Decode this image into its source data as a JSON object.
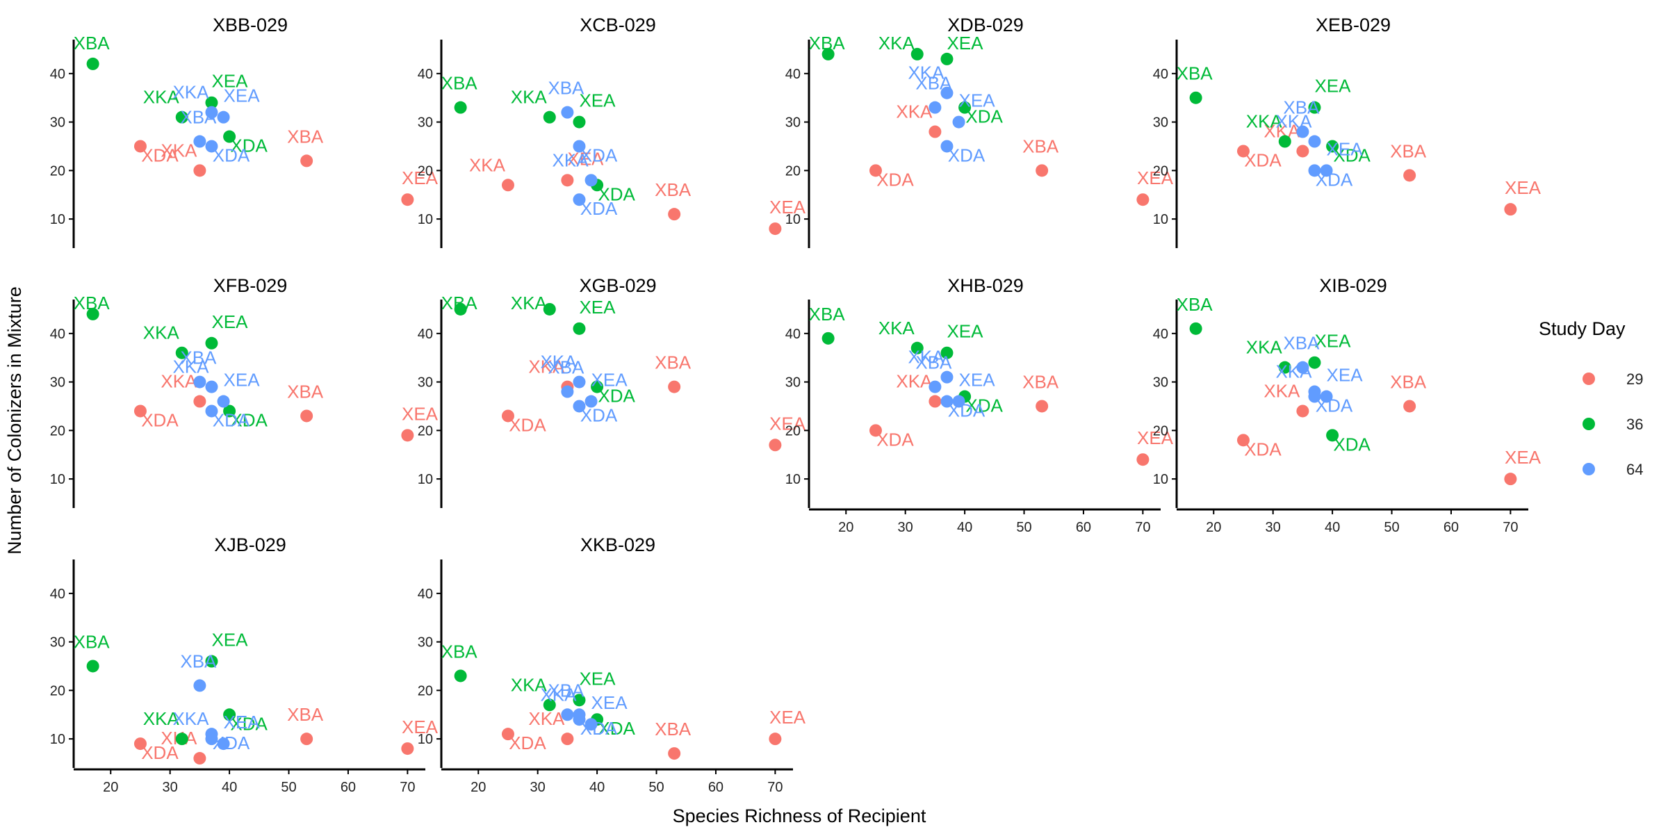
{
  "colors": {
    "29": "#F8766D",
    "36": "#00BA38",
    "64": "#619CFF"
  },
  "chart_data": {
    "type": "scatter",
    "xlabel": "Species Richness of Recipient",
    "ylabel": "Number of Colonizers in Mixture",
    "xlim": [
      14,
      73
    ],
    "ylim": [
      4,
      47
    ],
    "xticks": [
      20,
      30,
      40,
      50,
      60,
      70
    ],
    "yticks": [
      10,
      20,
      30,
      40
    ],
    "xtick_labels": [
      "20",
      "30",
      "40",
      "50",
      "60",
      "70"
    ],
    "ytick_labels": [
      "10",
      "20",
      "30",
      "40"
    ],
    "grid": false,
    "legend": {
      "title": "Study Day",
      "placement": "right",
      "entries": [
        "29",
        "36",
        "64"
      ]
    },
    "panels": [
      {
        "title": "XBB-029",
        "points": [
          {
            "day": "29",
            "label": "XDA",
            "x": 25,
            "y": 25
          },
          {
            "day": "29",
            "label": "XKA",
            "x": 35,
            "y": 20
          },
          {
            "day": "29",
            "label": "XBA",
            "x": 53,
            "y": 22
          },
          {
            "day": "29",
            "label": "XEA",
            "x": 70,
            "y": 14
          },
          {
            "day": "36",
            "label": "XBA",
            "x": 17,
            "y": 42
          },
          {
            "day": "36",
            "label": "XKA",
            "x": 32,
            "y": 31
          },
          {
            "day": "36",
            "label": "XEA",
            "x": 37,
            "y": 34
          },
          {
            "day": "36",
            "label": "XDA",
            "x": 40,
            "y": 27
          },
          {
            "day": "64",
            "label": "XKA",
            "x": 37,
            "y": 32
          },
          {
            "day": "64",
            "label": "XEA",
            "x": 39,
            "y": 31
          },
          {
            "day": "64",
            "label": "XBA",
            "x": 35,
            "y": 26
          },
          {
            "day": "64",
            "label": "XDA",
            "x": 37,
            "y": 25
          }
        ]
      },
      {
        "title": "XCB-029",
        "points": [
          {
            "day": "29",
            "label": "XKA",
            "x": 25,
            "y": 17
          },
          {
            "day": "29",
            "label": "XEA",
            "x": 35,
            "y": 18
          },
          {
            "day": "29",
            "label": "XBA",
            "x": 53,
            "y": 11
          },
          {
            "day": "29",
            "label": "XEA",
            "x": 70,
            "y": 8
          },
          {
            "day": "36",
            "label": "XBA",
            "x": 17,
            "y": 33
          },
          {
            "day": "36",
            "label": "XKA",
            "x": 32,
            "y": 31
          },
          {
            "day": "36",
            "label": "XEA",
            "x": 37,
            "y": 30
          },
          {
            "day": "36",
            "label": "XDA",
            "x": 40,
            "y": 17
          },
          {
            "day": "64",
            "label": "XBA",
            "x": 35,
            "y": 32
          },
          {
            "day": "64",
            "label": "XDA",
            "x": 37,
            "y": 25
          },
          {
            "day": "64",
            "label": "XKA",
            "x": 39,
            "y": 18
          },
          {
            "day": "64",
            "label": "XDA",
            "x": 37,
            "y": 14
          }
        ]
      },
      {
        "title": "XDB-029",
        "points": [
          {
            "day": "29",
            "label": "XDA",
            "x": 25,
            "y": 20
          },
          {
            "day": "29",
            "label": "XKA",
            "x": 35,
            "y": 28
          },
          {
            "day": "29",
            "label": "XBA",
            "x": 53,
            "y": 20
          },
          {
            "day": "29",
            "label": "XEA",
            "x": 70,
            "y": 14
          },
          {
            "day": "36",
            "label": "XBA",
            "x": 17,
            "y": 44
          },
          {
            "day": "36",
            "label": "XKA",
            "x": 32,
            "y": 44
          },
          {
            "day": "36",
            "label": "XEA",
            "x": 37,
            "y": 43
          },
          {
            "day": "36",
            "label": "XDA",
            "x": 40,
            "y": 33
          },
          {
            "day": "64",
            "label": "XKA",
            "x": 37,
            "y": 36
          },
          {
            "day": "64",
            "label": "XBA",
            "x": 35,
            "y": 33
          },
          {
            "day": "64",
            "label": "XEA",
            "x": 39,
            "y": 30
          },
          {
            "day": "64",
            "label": "XDA",
            "x": 37,
            "y": 25
          }
        ]
      },
      {
        "title": "XEB-029",
        "points": [
          {
            "day": "29",
            "label": "XDA",
            "x": 25,
            "y": 24
          },
          {
            "day": "29",
            "label": "XKA",
            "x": 35,
            "y": 24
          },
          {
            "day": "29",
            "label": "XBA",
            "x": 53,
            "y": 19
          },
          {
            "day": "29",
            "label": "XEA",
            "x": 70,
            "y": 12
          },
          {
            "day": "36",
            "label": "XBA",
            "x": 17,
            "y": 35
          },
          {
            "day": "36",
            "label": "XKA",
            "x": 32,
            "y": 26
          },
          {
            "day": "36",
            "label": "XEA",
            "x": 37,
            "y": 33
          },
          {
            "day": "36",
            "label": "XDA",
            "x": 40,
            "y": 25
          },
          {
            "day": "64",
            "label": "XBA",
            "x": 35,
            "y": 28
          },
          {
            "day": "64",
            "label": "XKA",
            "x": 37,
            "y": 26
          },
          {
            "day": "64",
            "label": "XDA",
            "x": 37,
            "y": 20
          },
          {
            "day": "64",
            "label": "XEA",
            "x": 39,
            "y": 20
          }
        ]
      },
      {
        "title": "XFB-029",
        "points": [
          {
            "day": "29",
            "label": "XDA",
            "x": 25,
            "y": 24
          },
          {
            "day": "29",
            "label": "XKA",
            "x": 35,
            "y": 26
          },
          {
            "day": "29",
            "label": "XBA",
            "x": 53,
            "y": 23
          },
          {
            "day": "29",
            "label": "XEA",
            "x": 70,
            "y": 19
          },
          {
            "day": "36",
            "label": "XBA",
            "x": 17,
            "y": 44
          },
          {
            "day": "36",
            "label": "XKA",
            "x": 32,
            "y": 36
          },
          {
            "day": "36",
            "label": "XEA",
            "x": 37,
            "y": 38
          },
          {
            "day": "36",
            "label": "XDA",
            "x": 40,
            "y": 24
          },
          {
            "day": "64",
            "label": "XBA",
            "x": 35,
            "y": 30
          },
          {
            "day": "64",
            "label": "XKA",
            "x": 37,
            "y": 29
          },
          {
            "day": "64",
            "label": "XDA",
            "x": 37,
            "y": 24
          },
          {
            "day": "64",
            "label": "XEA",
            "x": 39,
            "y": 26
          }
        ]
      },
      {
        "title": "XGB-029",
        "points": [
          {
            "day": "29",
            "label": "XDA",
            "x": 25,
            "y": 23
          },
          {
            "day": "29",
            "label": "XKA",
            "x": 35,
            "y": 29
          },
          {
            "day": "29",
            "label": "XBA",
            "x": 53,
            "y": 29
          },
          {
            "day": "29",
            "label": "XEA",
            "x": 70,
            "y": 17
          },
          {
            "day": "36",
            "label": "XBA",
            "x": 17,
            "y": 45
          },
          {
            "day": "36",
            "label": "XKA",
            "x": 32,
            "y": 45
          },
          {
            "day": "36",
            "label": "XEA",
            "x": 37,
            "y": 41
          },
          {
            "day": "36",
            "label": "XDA",
            "x": 40,
            "y": 29
          },
          {
            "day": "64",
            "label": "XKA",
            "x": 37,
            "y": 30
          },
          {
            "day": "64",
            "label": "XBA",
            "x": 35,
            "y": 28
          },
          {
            "day": "64",
            "label": "XEA",
            "x": 39,
            "y": 26
          },
          {
            "day": "64",
            "label": "XDA",
            "x": 37,
            "y": 25
          }
        ]
      },
      {
        "title": "XHB-029",
        "points": [
          {
            "day": "29",
            "label": "XDA",
            "x": 25,
            "y": 20
          },
          {
            "day": "29",
            "label": "XKA",
            "x": 35,
            "y": 26
          },
          {
            "day": "29",
            "label": "XBA",
            "x": 53,
            "y": 25
          },
          {
            "day": "29",
            "label": "XEA",
            "x": 70,
            "y": 14
          },
          {
            "day": "36",
            "label": "XBA",
            "x": 17,
            "y": 39
          },
          {
            "day": "36",
            "label": "XKA",
            "x": 32,
            "y": 37
          },
          {
            "day": "36",
            "label": "XEA",
            "x": 37,
            "y": 36
          },
          {
            "day": "36",
            "label": "XDA",
            "x": 40,
            "y": 27
          },
          {
            "day": "64",
            "label": "XBA",
            "x": 35,
            "y": 29
          },
          {
            "day": "64",
            "label": "XKA",
            "x": 37,
            "y": 31
          },
          {
            "day": "64",
            "label": "XDA",
            "x": 37,
            "y": 26
          },
          {
            "day": "64",
            "label": "XEA",
            "x": 39,
            "y": 26
          }
        ]
      },
      {
        "title": "XIB-029",
        "points": [
          {
            "day": "29",
            "label": "XDA",
            "x": 25,
            "y": 18
          },
          {
            "day": "29",
            "label": "XKA",
            "x": 35,
            "y": 24
          },
          {
            "day": "29",
            "label": "XBA",
            "x": 53,
            "y": 25
          },
          {
            "day": "29",
            "label": "XEA",
            "x": 70,
            "y": 10
          },
          {
            "day": "36",
            "label": "XBA",
            "x": 17,
            "y": 41
          },
          {
            "day": "36",
            "label": "XKA",
            "x": 32,
            "y": 33
          },
          {
            "day": "36",
            "label": "XEA",
            "x": 37,
            "y": 34
          },
          {
            "day": "36",
            "label": "XDA",
            "x": 40,
            "y": 19
          },
          {
            "day": "64",
            "label": "XBA",
            "x": 35,
            "y": 33
          },
          {
            "day": "64",
            "label": "XKA",
            "x": 37,
            "y": 28
          },
          {
            "day": "64",
            "label": "XDA",
            "x": 37,
            "y": 27
          },
          {
            "day": "64",
            "label": "XEA",
            "x": 39,
            "y": 27
          }
        ]
      },
      {
        "title": "XJB-029",
        "points": [
          {
            "day": "29",
            "label": "XDA",
            "x": 25,
            "y": 9
          },
          {
            "day": "29",
            "label": "XKA",
            "x": 35,
            "y": 6
          },
          {
            "day": "29",
            "label": "XBA",
            "x": 53,
            "y": 10
          },
          {
            "day": "29",
            "label": "XEA",
            "x": 70,
            "y": 8
          },
          {
            "day": "36",
            "label": "XBA",
            "x": 17,
            "y": 25
          },
          {
            "day": "36",
            "label": "XKA",
            "x": 32,
            "y": 10
          },
          {
            "day": "36",
            "label": "XEA",
            "x": 37,
            "y": 26
          },
          {
            "day": "36",
            "label": "XDA",
            "x": 40,
            "y": 15
          },
          {
            "day": "64",
            "label": "XBA",
            "x": 35,
            "y": 21
          },
          {
            "day": "64",
            "label": "XDA",
            "x": 37,
            "y": 11
          },
          {
            "day": "64",
            "label": "XKA",
            "x": 37,
            "y": 10
          },
          {
            "day": "64",
            "label": "XEA",
            "x": 39,
            "y": 9
          }
        ]
      },
      {
        "title": "XKB-029",
        "points": [
          {
            "day": "29",
            "label": "XDA",
            "x": 25,
            "y": 11
          },
          {
            "day": "29",
            "label": "XKA",
            "x": 35,
            "y": 10
          },
          {
            "day": "29",
            "label": "XBA",
            "x": 53,
            "y": 7
          },
          {
            "day": "29",
            "label": "XEA",
            "x": 70,
            "y": 10
          },
          {
            "day": "36",
            "label": "XBA",
            "x": 17,
            "y": 23
          },
          {
            "day": "36",
            "label": "XKA",
            "x": 32,
            "y": 17
          },
          {
            "day": "36",
            "label": "XEA",
            "x": 37,
            "y": 18
          },
          {
            "day": "36",
            "label": "XDA",
            "x": 40,
            "y": 14
          },
          {
            "day": "64",
            "label": "XBA",
            "x": 35,
            "y": 15
          },
          {
            "day": "64",
            "label": "XKA",
            "x": 37,
            "y": 15
          },
          {
            "day": "64",
            "label": "XDA",
            "x": 37,
            "y": 14
          },
          {
            "day": "64",
            "label": "XEA",
            "x": 39,
            "y": 13
          }
        ]
      }
    ]
  }
}
